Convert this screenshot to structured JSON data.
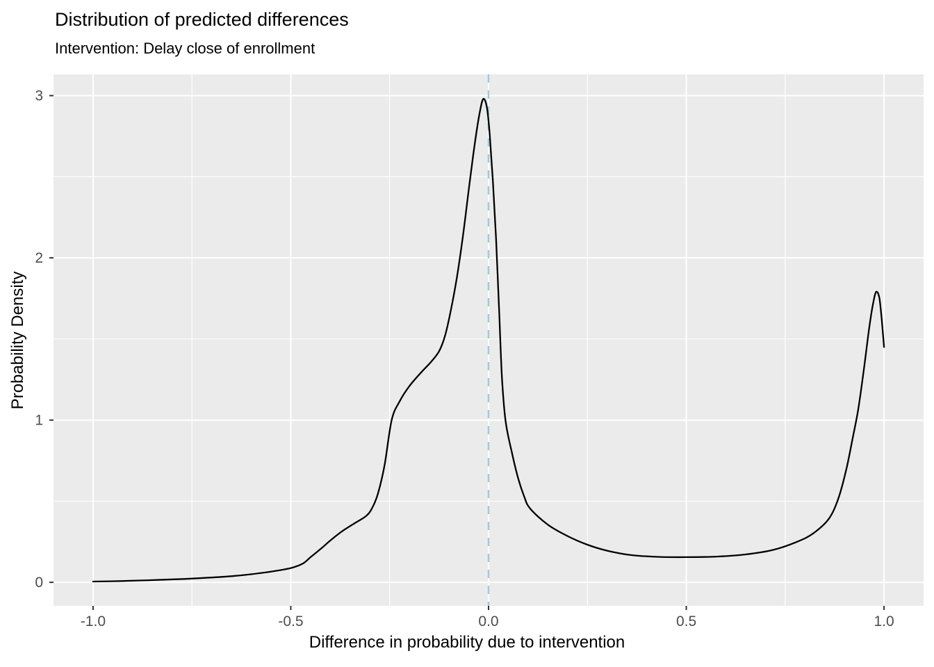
{
  "title": "Distribution of predicted differences",
  "subtitle": "Intervention: Delay close of enrollment",
  "colors": {
    "figure_background": "#FFFFFF",
    "panel_background": "#EBEBEB",
    "grid": "#FFFFFF",
    "curve": "#000000",
    "vline": "#9CCBE4",
    "tick_mark": "#333333",
    "tick_label": "#4D4D4D",
    "axis_title": "#000000"
  },
  "chart_data": {
    "type": "line",
    "title": "Distribution of predicted differences",
    "subtitle": "Intervention: Delay close of enrollment",
    "xlabel": "Difference in probability due to intervention",
    "ylabel": "Probability Density",
    "xlim": [
      -1.1,
      1.1
    ],
    "ylim": [
      -0.145,
      3.131
    ],
    "x_ticks": [
      -1.0,
      -0.5,
      0.0,
      0.5,
      1.0
    ],
    "x_tick_labels": [
      "-1.0",
      "-0.5",
      "0.0",
      "0.5",
      "1.0"
    ],
    "x_minor_ticks": [
      -0.75,
      -0.25,
      0.25,
      0.75
    ],
    "y_ticks": [
      0,
      1,
      2,
      3
    ],
    "y_tick_labels": [
      "0",
      "1",
      "2",
      "3"
    ],
    "y_minor_ticks": [
      0.5,
      1.5,
      2.5
    ],
    "grid": true,
    "legend": "none",
    "vline": {
      "x": 0.0,
      "style": "dashed",
      "color": "#9CCBE4"
    },
    "series": [
      {
        "name": "predicted difference density",
        "color": "#000000",
        "points": [
          [
            -1.0,
            0.005
          ],
          [
            -0.93,
            0.008
          ],
          [
            -0.86,
            0.013
          ],
          [
            -0.79,
            0.019
          ],
          [
            -0.72,
            0.027
          ],
          [
            -0.65,
            0.038
          ],
          [
            -0.6,
            0.05
          ],
          [
            -0.55,
            0.066
          ],
          [
            -0.5,
            0.088
          ],
          [
            -0.47,
            0.115
          ],
          [
            -0.45,
            0.155
          ],
          [
            -0.42,
            0.215
          ],
          [
            -0.4,
            0.258
          ],
          [
            -0.37,
            0.315
          ],
          [
            -0.34,
            0.362
          ],
          [
            -0.31,
            0.408
          ],
          [
            -0.295,
            0.455
          ],
          [
            -0.28,
            0.545
          ],
          [
            -0.263,
            0.72
          ],
          [
            -0.245,
            1.0
          ],
          [
            -0.225,
            1.115
          ],
          [
            -0.2,
            1.21
          ],
          [
            -0.17,
            1.295
          ],
          [
            -0.145,
            1.36
          ],
          [
            -0.125,
            1.425
          ],
          [
            -0.11,
            1.52
          ],
          [
            -0.095,
            1.68
          ],
          [
            -0.08,
            1.88
          ],
          [
            -0.065,
            2.13
          ],
          [
            -0.05,
            2.42
          ],
          [
            -0.035,
            2.7
          ],
          [
            -0.022,
            2.9
          ],
          [
            -0.013,
            2.98
          ],
          [
            -0.004,
            2.925
          ],
          [
            0.003,
            2.76
          ],
          [
            0.011,
            2.47
          ],
          [
            0.019,
            2.12
          ],
          [
            0.027,
            1.66
          ],
          [
            0.034,
            1.26
          ],
          [
            0.043,
            0.995
          ],
          [
            0.059,
            0.8
          ],
          [
            0.075,
            0.64
          ],
          [
            0.09,
            0.53
          ],
          [
            0.105,
            0.455
          ],
          [
            0.15,
            0.355
          ],
          [
            0.2,
            0.285
          ],
          [
            0.25,
            0.232
          ],
          [
            0.3,
            0.195
          ],
          [
            0.36,
            0.168
          ],
          [
            0.43,
            0.157
          ],
          [
            0.5,
            0.155
          ],
          [
            0.58,
            0.159
          ],
          [
            0.65,
            0.172
          ],
          [
            0.72,
            0.2
          ],
          [
            0.78,
            0.25
          ],
          [
            0.82,
            0.3
          ],
          [
            0.86,
            0.39
          ],
          [
            0.885,
            0.52
          ],
          [
            0.905,
            0.7
          ],
          [
            0.92,
            0.88
          ],
          [
            0.935,
            1.07
          ],
          [
            0.95,
            1.33
          ],
          [
            0.962,
            1.56
          ],
          [
            0.972,
            1.715
          ],
          [
            0.98,
            1.79
          ],
          [
            0.988,
            1.755
          ],
          [
            0.994,
            1.625
          ],
          [
            1.0,
            1.45
          ]
        ]
      }
    ]
  }
}
